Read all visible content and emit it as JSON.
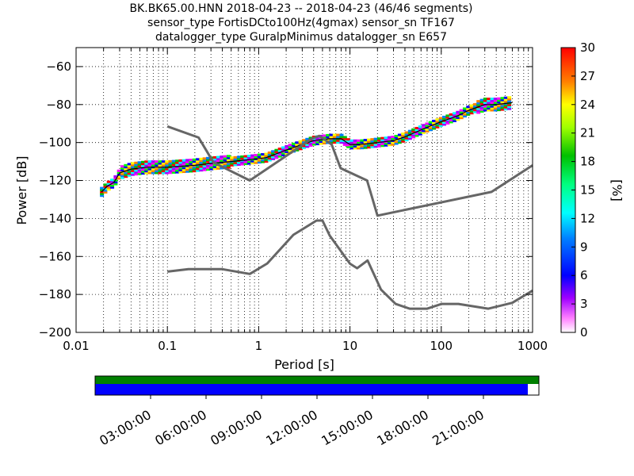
{
  "header": {
    "line1": "BK.BK65.00.HNN   2018-04-23 -- 2018-04-23  (46/46 segments)",
    "line2": "sensor_type FortisDCto100Hz(4gmax) sensor_sn TF167",
    "line3": "datalogger_type GuralpMinimus datalogger_sn E657"
  },
  "chart_data": {
    "type": "heatmap",
    "xlabel": "Period [s]",
    "ylabel": "Power [dB]",
    "xscale": "log",
    "xlim": [
      0.01,
      1000
    ],
    "ylim": [
      -200,
      -50
    ],
    "x_ticks": [
      "0.01",
      "0.1",
      "1",
      "10",
      "100",
      "1000"
    ],
    "x_tick_values": [
      0.01,
      0.1,
      1,
      10,
      100,
      1000
    ],
    "y_ticks": [
      "−60",
      "−80",
      "−100",
      "−120",
      "−140",
      "−160",
      "−180",
      "−200"
    ],
    "y_tick_values": [
      -60,
      -80,
      -100,
      -120,
      -140,
      -160,
      -180,
      -200
    ],
    "grid": "dotted",
    "colorbar": {
      "label": "[%]",
      "min": 0,
      "max": 30,
      "ticks": [
        "0",
        "3",
        "6",
        "9",
        "12",
        "15",
        "18",
        "21",
        "24",
        "27",
        "30"
      ],
      "tick_values": [
        0,
        3,
        6,
        9,
        12,
        15,
        18,
        21,
        24,
        27,
        30
      ]
    },
    "series": [
      {
        "role": "psd-mode",
        "x": [
          0.019,
          0.022,
          0.026,
          0.03,
          0.04,
          0.06,
          0.1,
          0.2,
          0.3,
          0.5,
          0.8,
          1.2,
          2,
          3,
          4,
          6,
          8,
          10,
          13,
          20,
          30,
          40,
          50,
          70,
          100,
          150,
          200,
          300,
          400,
          600
        ],
        "y": [
          -126,
          -123,
          -121,
          -116,
          -114,
          -113,
          -113,
          -112,
          -111,
          -110,
          -109,
          -108,
          -104,
          -101,
          -99,
          -98,
          -98,
          -101,
          -101,
          -100,
          -99,
          -97,
          -95,
          -92,
          -89,
          -86,
          -83,
          -80,
          -80,
          -79
        ]
      },
      {
        "role": "high-noise-model",
        "x": [
          0.1,
          0.22,
          0.32,
          0.8,
          3.8,
          4.6,
          6.3,
          7.9,
          15.4,
          20,
          354.8,
          1000
        ],
        "y": [
          -91.5,
          -97.4,
          -110.5,
          -120,
          -98,
          -96.5,
          -101,
          -113.5,
          -120,
          -138.5,
          -126,
          -112
        ]
      },
      {
        "role": "low-noise-model",
        "x": [
          0.1,
          0.17,
          0.4,
          0.8,
          1.24,
          2.4,
          4.3,
          5,
          6,
          10,
          12,
          15.6,
          21.9,
          31.6,
          45,
          70,
          101,
          154,
          328,
          600,
          1000
        ],
        "y": [
          -168,
          -166.7,
          -166.7,
          -169.2,
          -163.7,
          -148.6,
          -141.1,
          -141.1,
          -149,
          -163.8,
          -166.2,
          -162.1,
          -177.5,
          -185,
          -187.5,
          -187.5,
          -185,
          -185,
          -187.5,
          -184.4,
          -178
        ]
      }
    ],
    "time_ticks": [
      "03:00:00",
      "06:00:00",
      "09:00:00",
      "12:00:00",
      "15:00:00",
      "18:00:00",
      "21:00:00"
    ],
    "time_tick_hours": [
      3,
      6,
      9,
      12,
      15,
      18,
      21
    ],
    "coverage_fraction": 0.975,
    "colors": {
      "model_line": "#666666",
      "mode_line": "#000000",
      "coverage_top": "#008000",
      "coverage_bottom": "#0000ff"
    }
  }
}
